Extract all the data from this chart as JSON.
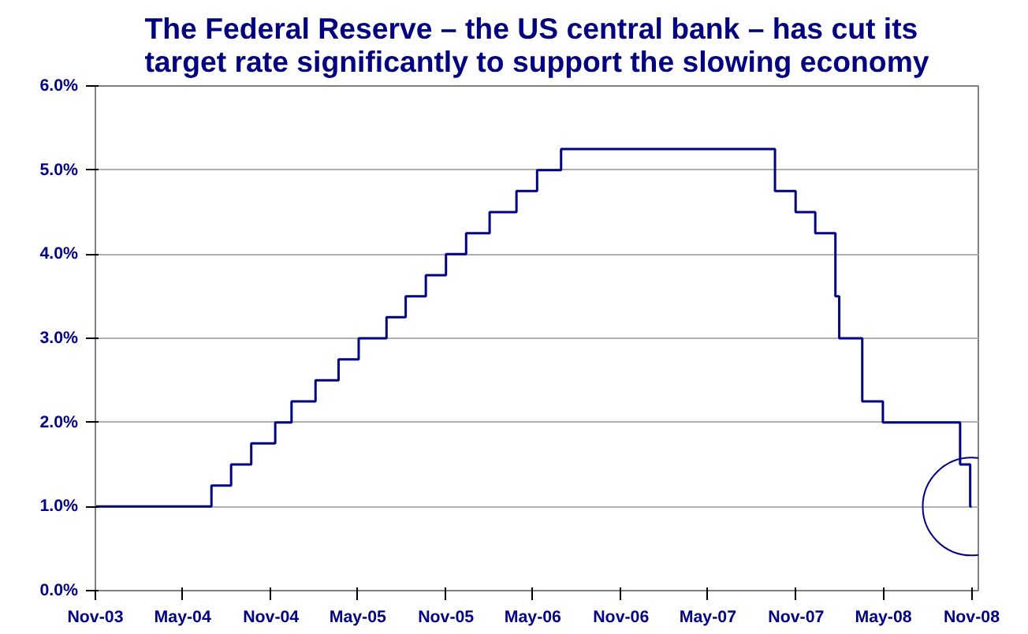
{
  "chart_data": {
    "type": "step",
    "title": "The Federal Reserve – the US central bank – has cut its\ntarget rate significantly to support the slowing economy",
    "x": [
      "2003-11-01",
      "2004-06-30",
      "2004-08-10",
      "2004-09-21",
      "2004-11-10",
      "2004-12-14",
      "2005-02-02",
      "2005-03-22",
      "2005-05-03",
      "2005-06-30",
      "2005-08-09",
      "2005-09-20",
      "2005-11-01",
      "2005-12-13",
      "2006-01-31",
      "2006-03-28",
      "2006-05-10",
      "2006-06-29",
      "2007-09-18",
      "2007-10-31",
      "2007-12-11",
      "2008-01-22",
      "2008-01-30",
      "2008-03-18",
      "2008-04-30",
      "2008-10-08",
      "2008-10-29",
      "2008-11-01"
    ],
    "series": [
      {
        "color": "#000080",
        "values": [
          1.0,
          1.25,
          1.5,
          1.75,
          2.0,
          2.25,
          2.5,
          2.75,
          3.0,
          3.25,
          3.5,
          3.75,
          4.0,
          4.25,
          4.5,
          4.75,
          5.0,
          5.25,
          4.75,
          4.5,
          4.25,
          3.5,
          3.0,
          2.25,
          2.0,
          1.5,
          1.0,
          1.0
        ]
      }
    ],
    "xlim": [
      "2003-11-01",
      "2008-11-15"
    ],
    "xticks": [
      {
        "value": "2003-11-01",
        "label": "Nov-03"
      },
      {
        "value": "2004-05-01",
        "label": "May-04"
      },
      {
        "value": "2004-11-01",
        "label": "Nov-04"
      },
      {
        "value": "2005-05-01",
        "label": "May-05"
      },
      {
        "value": "2005-11-01",
        "label": "Nov-05"
      },
      {
        "value": "2006-05-01",
        "label": "May-06"
      },
      {
        "value": "2006-11-01",
        "label": "Nov-06"
      },
      {
        "value": "2007-05-01",
        "label": "May-07"
      },
      {
        "value": "2007-11-01",
        "label": "Nov-07"
      },
      {
        "value": "2008-05-01",
        "label": "May-08"
      },
      {
        "value": "2008-11-01",
        "label": "Nov-08"
      }
    ],
    "ylim": [
      0,
      6
    ],
    "yticks": [
      {
        "value": 0,
        "label": "0.0%"
      },
      {
        "value": 1,
        "label": "1.0%"
      },
      {
        "value": 2,
        "label": "2.0%"
      },
      {
        "value": 3,
        "label": "3.0%"
      },
      {
        "value": 4,
        "label": "4.0%"
      },
      {
        "value": 5,
        "label": "5.0%"
      },
      {
        "value": 6,
        "label": "6.0%"
      }
    ],
    "grid": "y",
    "line_style": "solid"
  }
}
